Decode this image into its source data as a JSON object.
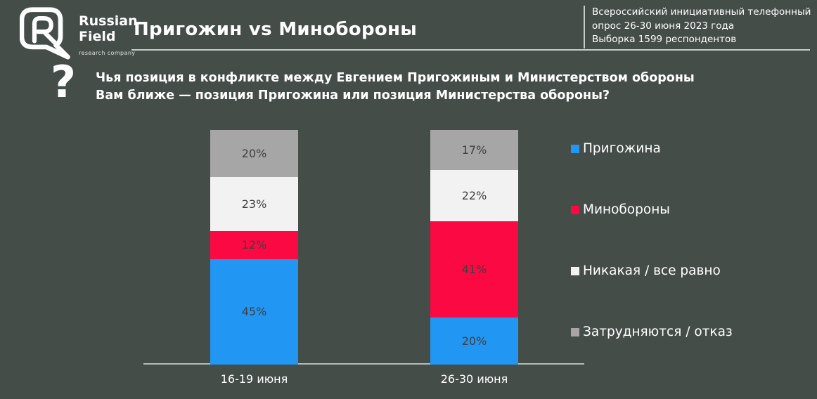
{
  "header": {
    "logo": {
      "line1": "Russian",
      "line2": "Field",
      "subtitle": "research company"
    },
    "title": "Пригожин vs Минобороны",
    "info_lines": "Всероссийский инициативный телефонный\nопрос 26-30 июня 2023 года\nВыборка 1599 респондентов"
  },
  "question": {
    "icon": "?",
    "text": "Чья позиция в конфликте между Евгением Пригожиным и Министерством обороны Вам ближе — позиция Пригожина или позиция Министерства обороны?"
  },
  "chart_data": {
    "type": "bar",
    "stacked": true,
    "orientation": "vertical",
    "categories": [
      "16-19 июня",
      "26-30 июня"
    ],
    "series": [
      {
        "name": "Пригожина",
        "color": "#2196f3",
        "values": [
          45,
          20
        ]
      },
      {
        "name": "Минобороны",
        "color": "#fa0943",
        "values": [
          12,
          41
        ]
      },
      {
        "name": "Никакая / все равно",
        "color": "#f2f2f2",
        "values": [
          23,
          22
        ]
      },
      {
        "name": "Затрудняются / отказ",
        "color": "#a6a6a6",
        "values": [
          20,
          17
        ]
      }
    ],
    "value_suffix": "%",
    "ylim": [
      0,
      100
    ],
    "grid": false,
    "legend_position": "right",
    "value_label_color": "#404040",
    "axis_line_color": "#b4bab6"
  },
  "colors": {
    "background": "#454d49",
    "text": "#ffffff",
    "rule": "#c7ccc9"
  }
}
